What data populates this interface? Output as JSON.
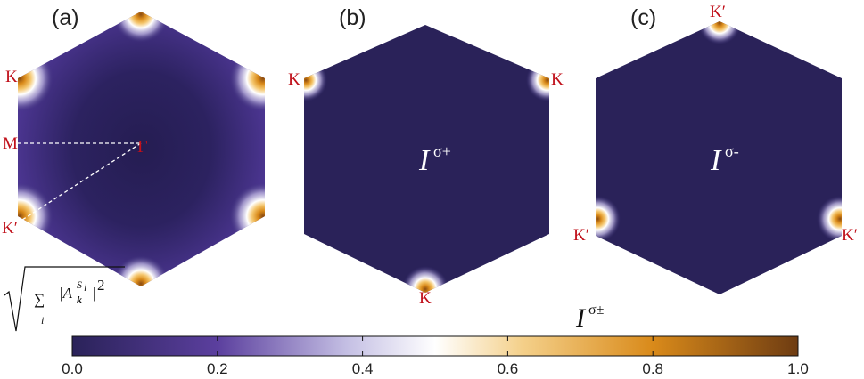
{
  "colors": {
    "background": "#2a2259",
    "label_red": "#c0101a",
    "hotspot_gradient": [
      "#2a2259",
      "#5b3f9e",
      "#ffffff",
      "#f4c56b",
      "#d98a1a",
      "#7a4310"
    ]
  },
  "panels": [
    {
      "label": "(a)",
      "points": {
        "K_top": "K",
        "M": "M",
        "Gamma": "Γ",
        "K_prime_left": "K′"
      },
      "hotspots_at": [
        "top",
        "upper-left",
        "upper-right",
        "lower-left",
        "lower-right",
        "bottom"
      ]
    },
    {
      "label": "(b)",
      "points": {
        "K_left": "K",
        "K_right": "K",
        "K_bottom": "K"
      },
      "intensity_symbol": "I",
      "intensity_sup": "σ+",
      "hotspots_at": [
        "upper-left",
        "upper-right",
        "bottom"
      ]
    },
    {
      "label": "(c)",
      "points": {
        "K_prime_top": "K′",
        "K_prime_left": "K′",
        "K_prime_right": "K′"
      },
      "intensity_symbol": "I",
      "intensity_sup": "σ-",
      "hotspots_at": [
        "top",
        "lower-left",
        "lower-right"
      ]
    }
  ],
  "colorbar": {
    "title_symbol": "I",
    "title_sup": "σ±",
    "ticks": [
      "0.0",
      "0.2",
      "0.4",
      "0.6",
      "0.8",
      "1.0"
    ],
    "range": [
      0.0,
      1.0
    ]
  },
  "formula": {
    "sum": "∑",
    "index": "i",
    "body": "|A",
    "subscript": "k",
    "superscript": "S",
    "superscript_sub": "i",
    "tail": "|",
    "power": "2"
  }
}
